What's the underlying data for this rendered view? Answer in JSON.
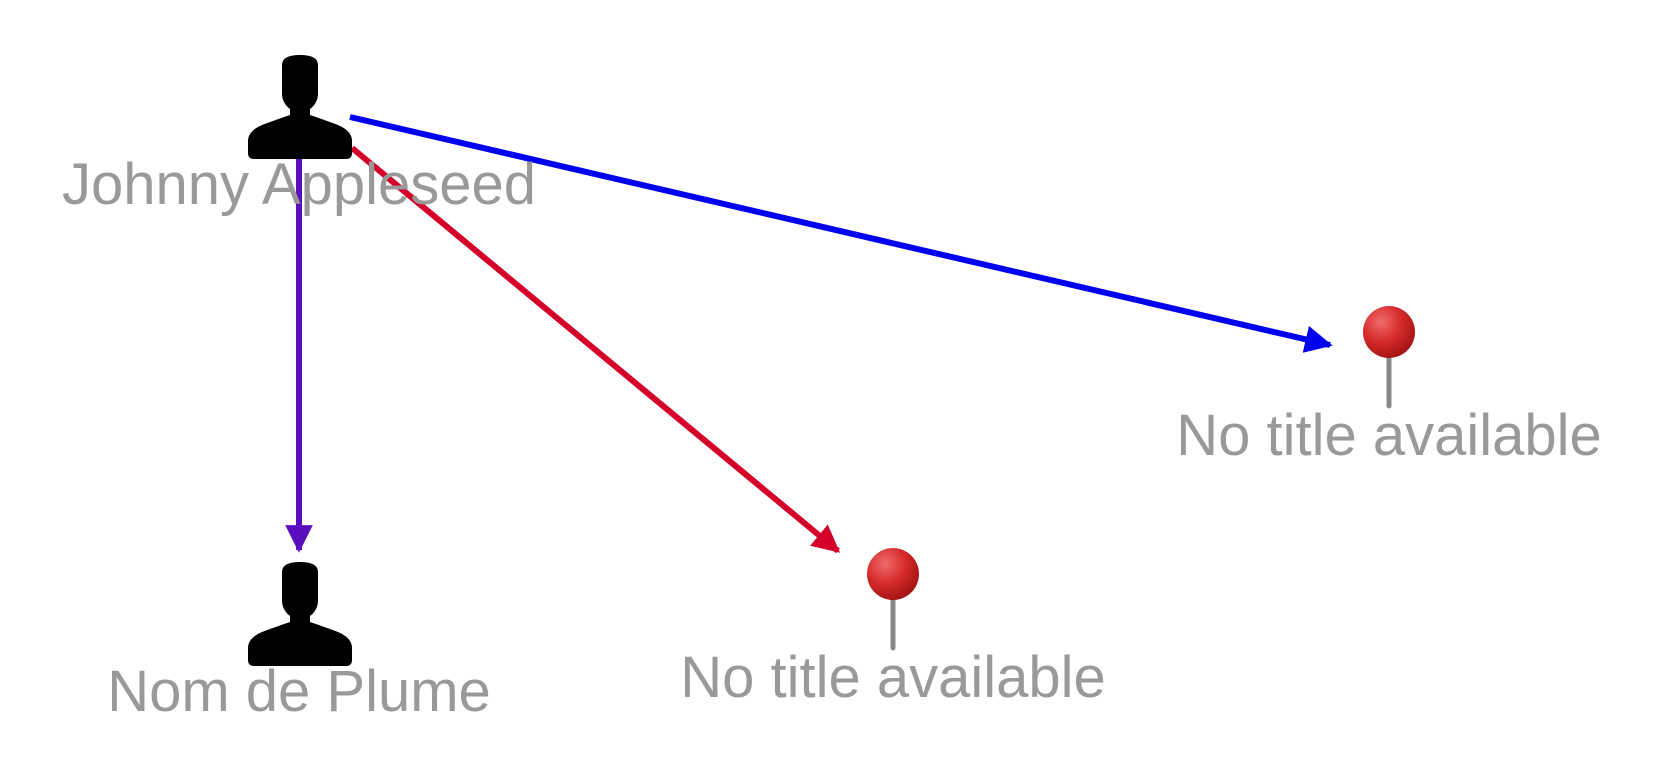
{
  "graph": {
    "nodes": [
      {
        "id": "person-1",
        "kind": "person",
        "label": "Johnny Appleseed"
      },
      {
        "id": "person-2",
        "kind": "person",
        "label": "Nom de Plume"
      },
      {
        "id": "place-1",
        "kind": "place",
        "label": "No title available"
      },
      {
        "id": "place-2",
        "kind": "place",
        "label": "No title available"
      }
    ],
    "edges": [
      {
        "from": "person-1",
        "to": "person-2",
        "color": "#5a0fbf"
      },
      {
        "from": "person-1",
        "to": "place-1",
        "color": "#d4002a"
      },
      {
        "from": "person-1",
        "to": "place-2",
        "color": "#0000f0"
      }
    ]
  },
  "colors": {
    "label": "#999999",
    "pin_head": "#d62b2b",
    "pin_stem": "#888888",
    "person_icon": "#000000"
  },
  "icons": {
    "person": "person-silhouette-icon",
    "place": "map-pin-icon"
  }
}
